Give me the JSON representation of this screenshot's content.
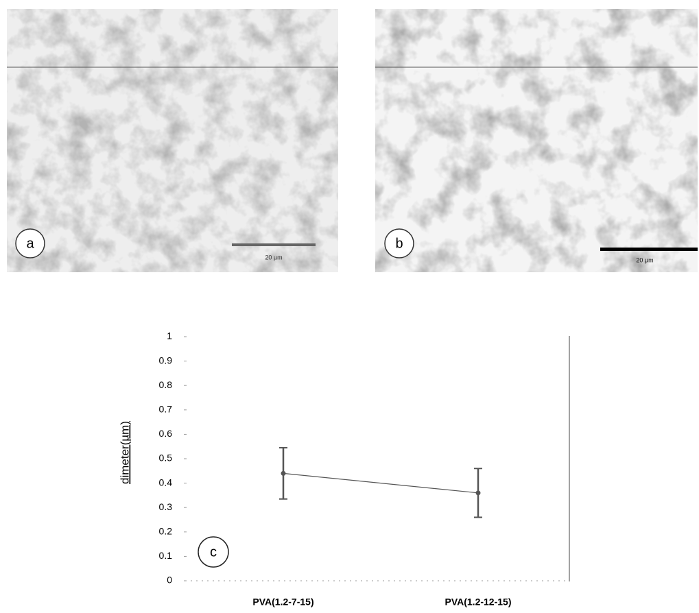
{
  "panels": {
    "a": {
      "label": "a",
      "scale": "20 µm"
    },
    "b": {
      "label": "b",
      "scale": "20 µm"
    }
  },
  "chart_data": {
    "type": "line",
    "label": "c",
    "ylabel": "dimeter(µm)",
    "categories": [
      "PVA(1.2-7-15)",
      "PVA(1.2-12-15)"
    ],
    "series": [
      {
        "color": "#555555",
        "values": [
          0.44,
          0.36
        ],
        "errors": [
          0.105,
          0.1
        ]
      }
    ],
    "ylim": [
      0,
      1
    ],
    "yticks": [
      0,
      0.1,
      0.2,
      0.3,
      0.4,
      0.5,
      0.6,
      0.7,
      0.8,
      0.9,
      1
    ]
  }
}
